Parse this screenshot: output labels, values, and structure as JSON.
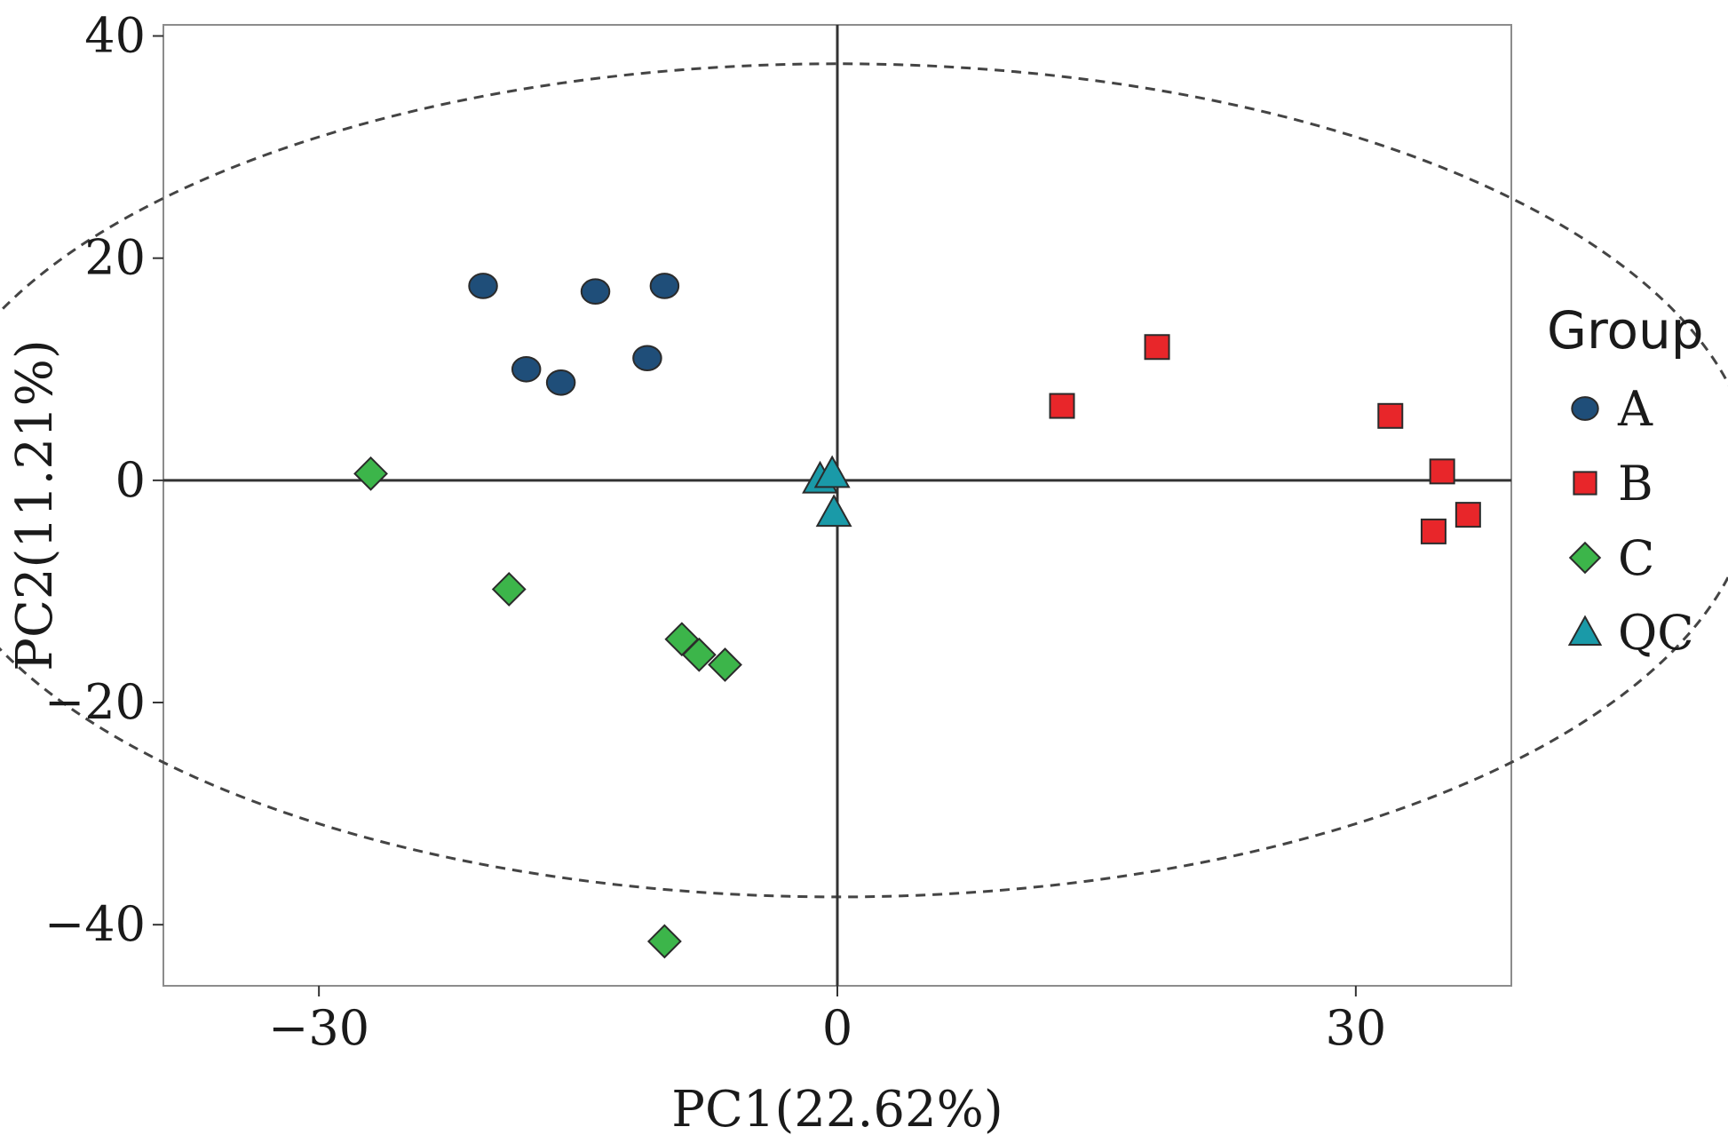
{
  "chart_data": {
    "type": "scatter",
    "title": "",
    "xlabel": "PC1(22.62%)",
    "ylabel": "PC2(11.21%)",
    "xlim": [
      -39,
      39
    ],
    "ylim": [
      -45.5,
      41
    ],
    "x_ticks": [
      -30,
      0,
      30
    ],
    "y_ticks": [
      -40,
      -20,
      0,
      20,
      40
    ],
    "x_tick_labels": [
      "−30",
      "0",
      "30"
    ],
    "y_tick_labels": [
      "−40",
      "−20",
      "0",
      "20",
      "40"
    ],
    "grid": false,
    "zero_lines": true,
    "confidence_ellipse": {
      "rx": 53,
      "ry": 37.5,
      "style": "dashed"
    },
    "legend": {
      "title": "Group",
      "position": "right"
    },
    "series": [
      {
        "name": "A",
        "marker": "circle",
        "color": "#1f4e79",
        "points": [
          [
            -20.5,
            17.5
          ],
          [
            -14,
            17
          ],
          [
            -10,
            17.5
          ],
          [
            -18,
            10
          ],
          [
            -16,
            8.8
          ],
          [
            -11,
            11
          ]
        ]
      },
      {
        "name": "B",
        "marker": "square",
        "color": "#e8262a",
        "points": [
          [
            13,
            6.7
          ],
          [
            18.5,
            12
          ],
          [
            32,
            5.8
          ],
          [
            35,
            0.8
          ],
          [
            36.5,
            -3.1
          ],
          [
            34.5,
            -4.6
          ]
        ]
      },
      {
        "name": "C",
        "marker": "diamond",
        "color": "#3cb54a",
        "points": [
          [
            -27,
            0.6
          ],
          [
            -19,
            -9.8
          ],
          [
            -9,
            -14.3
          ],
          [
            -8,
            -15.7
          ],
          [
            -6.5,
            -16.6
          ],
          [
            -10,
            -41.5
          ]
        ]
      },
      {
        "name": "QC",
        "marker": "triangle",
        "color": "#1a9aa8",
        "points": [
          [
            -1,
            0.1
          ],
          [
            -0.3,
            0.6
          ],
          [
            -0.2,
            -2.9
          ]
        ]
      }
    ]
  }
}
